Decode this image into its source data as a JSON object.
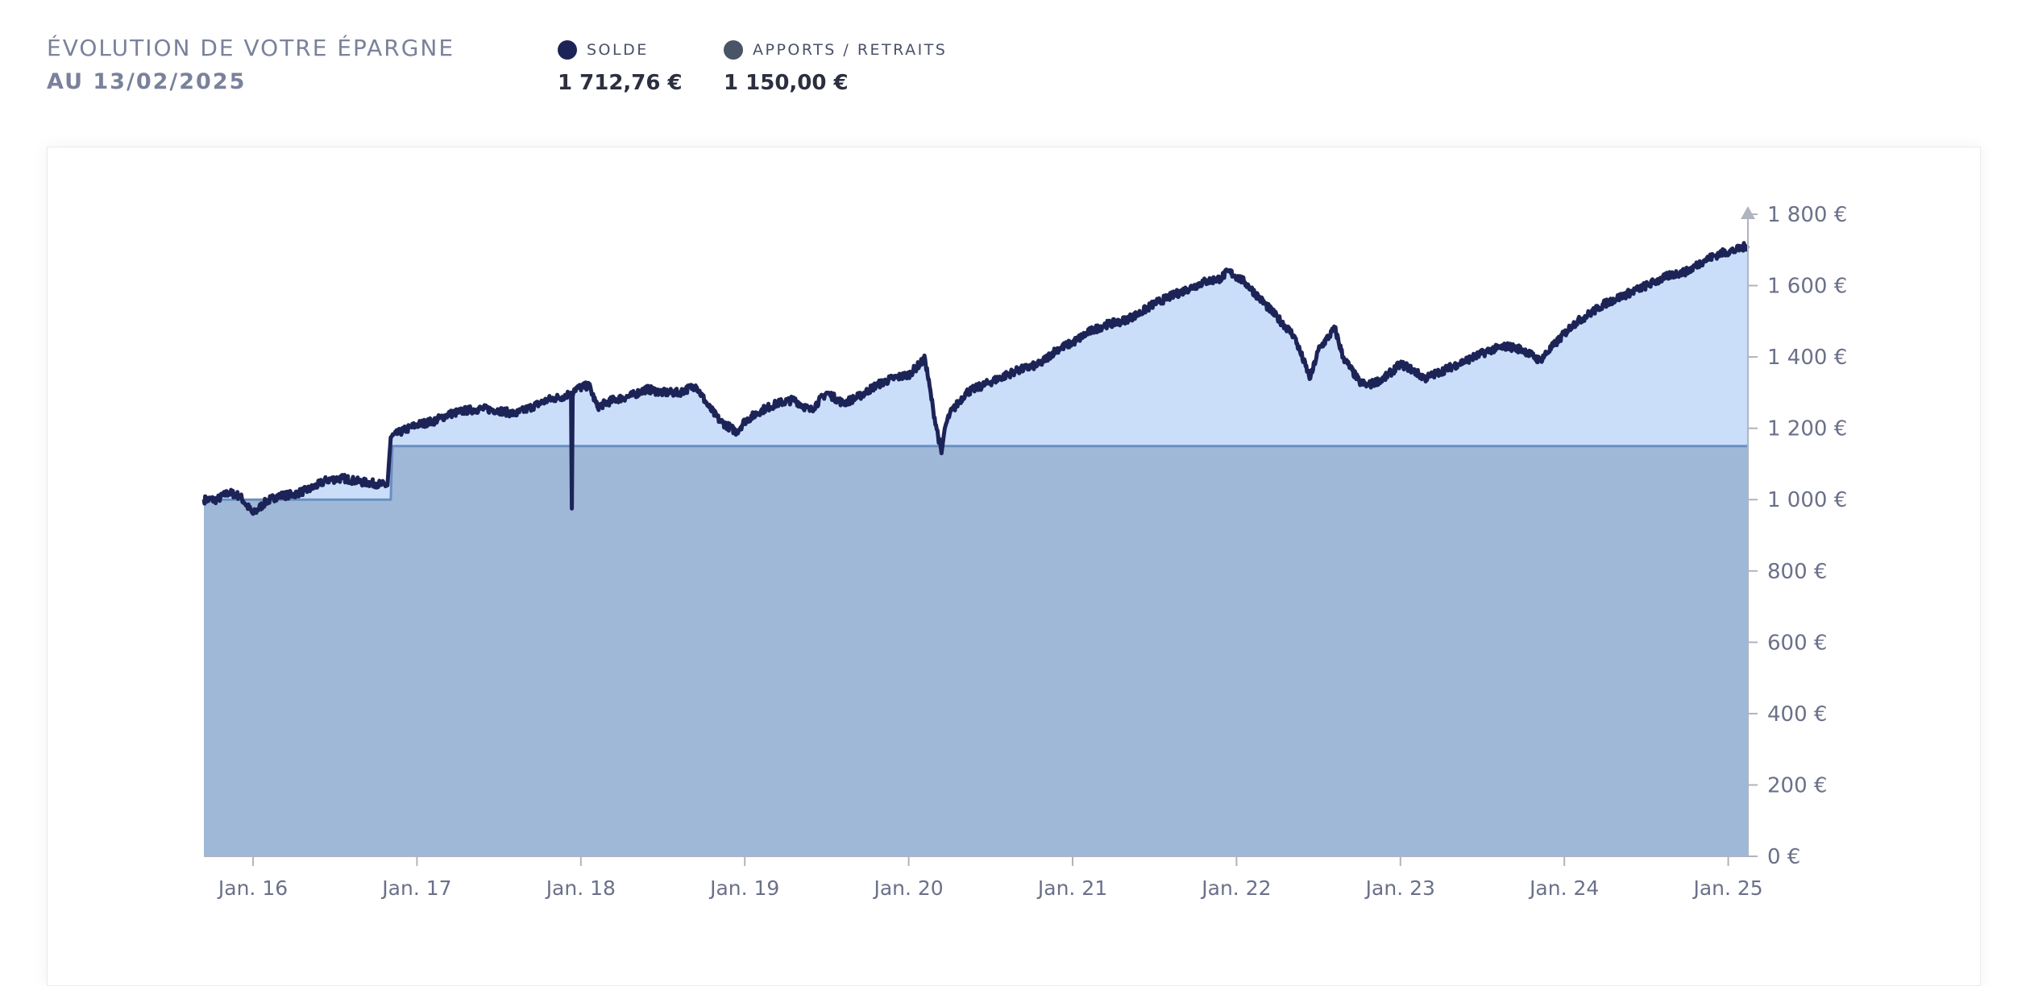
{
  "header": {
    "title": "ÉVOLUTION DE VOTRE ÉPARGNE",
    "subtitle": "AU 13/02/2025"
  },
  "legend": [
    {
      "label": "SOLDE",
      "value": "1 712,76 €",
      "color": "#1c2457"
    },
    {
      "label": "APPORTS / RETRAITS",
      "value": "1 150,00 €",
      "color": "#495466"
    }
  ],
  "colors": {
    "balance_line": "#1c2457",
    "balance_fill": "#cadefa",
    "contrib_fill": "#a0b8d8",
    "contrib_line": "#6a8fc0",
    "axis": "#b0b4c0"
  },
  "chart_data": {
    "type": "area",
    "title": "ÉVOLUTION DE VOTRE ÉPARGNE",
    "xlabel": "",
    "ylabel": "",
    "ylim": [
      0,
      1800
    ],
    "xlim": [
      2015.7,
      2025.12
    ],
    "y_ticks": [
      {
        "value": 0,
        "label": "0 €"
      },
      {
        "value": 200,
        "label": "200 €"
      },
      {
        "value": 400,
        "label": "400 €"
      },
      {
        "value": 600,
        "label": "600 €"
      },
      {
        "value": 800,
        "label": "800 €"
      },
      {
        "value": 1000,
        "label": "1 000 €"
      },
      {
        "value": 1200,
        "label": "1 200 €"
      },
      {
        "value": 1400,
        "label": "1 400 €"
      },
      {
        "value": 1600,
        "label": "1 600 €"
      },
      {
        "value": 1800,
        "label": "1 800 €"
      }
    ],
    "x_ticks": [
      {
        "value": 2016,
        "label": "Jan. 16"
      },
      {
        "value": 2017,
        "label": "Jan. 17"
      },
      {
        "value": 2018,
        "label": "Jan. 18"
      },
      {
        "value": 2019,
        "label": "Jan. 19"
      },
      {
        "value": 2020,
        "label": "Jan. 20"
      },
      {
        "value": 2021,
        "label": "Jan. 21"
      },
      {
        "value": 2022,
        "label": "Jan. 22"
      },
      {
        "value": 2023,
        "label": "Jan. 23"
      },
      {
        "value": 2024,
        "label": "Jan. 24"
      },
      {
        "value": 2025,
        "label": "Jan. 25"
      }
    ],
    "series": [
      {
        "name": "Solde",
        "x": [
          2015.7,
          2015.78,
          2015.85,
          2015.92,
          2016.0,
          2016.08,
          2016.15,
          2016.25,
          2016.35,
          2016.45,
          2016.55,
          2016.65,
          2016.75,
          2016.82,
          2016.84,
          2016.9,
          2017.0,
          2017.1,
          2017.2,
          2017.3,
          2017.4,
          2017.5,
          2017.6,
          2017.7,
          2017.8,
          2017.9,
          2017.94,
          2017.945,
          2017.95,
          2017.96,
          2018.05,
          2018.1,
          2018.2,
          2018.3,
          2018.4,
          2018.5,
          2018.6,
          2018.7,
          2018.78,
          2018.85,
          2018.95,
          2019.0,
          2019.1,
          2019.2,
          2019.3,
          2019.4,
          2019.5,
          2019.6,
          2019.7,
          2019.8,
          2019.9,
          2020.0,
          2020.1,
          2020.15,
          2020.2,
          2020.22,
          2020.25,
          2020.35,
          2020.5,
          2020.65,
          2020.8,
          2020.9,
          2021.0,
          2021.1,
          2021.2,
          2021.3,
          2021.4,
          2021.5,
          2021.6,
          2021.7,
          2021.8,
          2021.9,
          2021.95,
          2022.05,
          2022.15,
          2022.25,
          2022.35,
          2022.45,
          2022.5,
          2022.6,
          2022.65,
          2022.75,
          2022.8,
          2022.9,
          2023.0,
          2023.05,
          2023.15,
          2023.25,
          2023.35,
          2023.45,
          2023.55,
          2023.65,
          2023.75,
          2023.85,
          2023.95,
          2024.05,
          2024.15,
          2024.25,
          2024.35,
          2024.45,
          2024.55,
          2024.65,
          2024.75,
          2024.85,
          2024.95,
          2025.05,
          2025.12
        ],
        "values": [
          1000,
          1000,
          1020,
          1010,
          960,
          995,
          1010,
          1015,
          1030,
          1055,
          1060,
          1050,
          1045,
          1040,
          1175,
          1190,
          1210,
          1220,
          1240,
          1250,
          1255,
          1250,
          1240,
          1260,
          1280,
          1290,
          1300,
          975,
          1290,
          1310,
          1320,
          1260,
          1280,
          1290,
          1310,
          1300,
          1300,
          1320,
          1260,
          1220,
          1190,
          1220,
          1250,
          1270,
          1280,
          1250,
          1300,
          1270,
          1290,
          1320,
          1340,
          1350,
          1395,
          1250,
          1130,
          1200,
          1240,
          1300,
          1330,
          1360,
          1380,
          1420,
          1440,
          1470,
          1490,
          1500,
          1520,
          1550,
          1570,
          1590,
          1610,
          1620,
          1640,
          1610,
          1560,
          1510,
          1460,
          1340,
          1420,
          1480,
          1400,
          1330,
          1320,
          1340,
          1380,
          1370,
          1340,
          1360,
          1380,
          1400,
          1420,
          1430,
          1420,
          1390,
          1440,
          1490,
          1520,
          1550,
          1570,
          1590,
          1610,
          1630,
          1640,
          1670,
          1690,
          1700,
          1712.76
        ]
      },
      {
        "name": "Apports / Retraits",
        "x": [
          2015.7,
          2016.84,
          2016.85,
          2025.12
        ],
        "values": [
          1000,
          1000,
          1150,
          1150
        ]
      }
    ]
  }
}
